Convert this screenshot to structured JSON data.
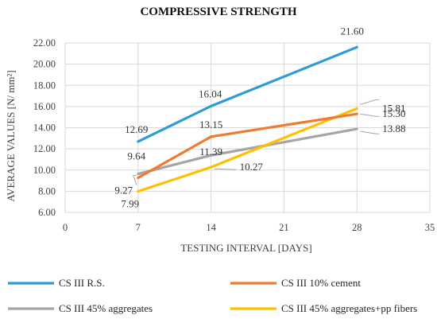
{
  "chart_data": {
    "type": "line",
    "title": "COMPRESSIVE STRENGTH",
    "xlabel": "TESTING INTERVAL [DAYS]",
    "ylabel": "AVERAGE VALUES  [N/ mm²]",
    "xlim": [
      0,
      35
    ],
    "ylim": [
      6.0,
      22.0
    ],
    "xticks": [
      0,
      7,
      14,
      21,
      28,
      35
    ],
    "yticks": [
      "6.00",
      "8.00",
      "10.00",
      "12.00",
      "14.00",
      "16.00",
      "18.00",
      "20.00",
      "22.00"
    ],
    "grid": true,
    "legend_position": "bottom",
    "series": [
      {
        "name": "CS III R.S.",
        "color": "#2E9BD6",
        "x": [
          7,
          14,
          28
        ],
        "values": [
          12.69,
          16.04,
          21.6
        ],
        "labels": [
          "12.69",
          "16.04",
          "21.60"
        ]
      },
      {
        "name": "CS III 10% cement",
        "color": "#F07A30",
        "x": [
          7,
          14,
          28
        ],
        "values": [
          9.27,
          13.15,
          15.3
        ],
        "labels": [
          "9.27",
          "13.15",
          "15.30"
        ]
      },
      {
        "name": "CS III 45% aggregates",
        "color": "#A5A5A5",
        "x": [
          7,
          14,
          28
        ],
        "values": [
          9.64,
          11.39,
          13.88
        ],
        "labels": [
          "9.64",
          "11.39",
          "13.88"
        ]
      },
      {
        "name": "CS III 45% aggregates+pp fibers",
        "color": "#FFC000",
        "x": [
          7,
          14,
          28
        ],
        "values": [
          7.99,
          10.27,
          15.81
        ],
        "labels": [
          "7.99",
          "10.27",
          "15.81"
        ]
      }
    ]
  }
}
